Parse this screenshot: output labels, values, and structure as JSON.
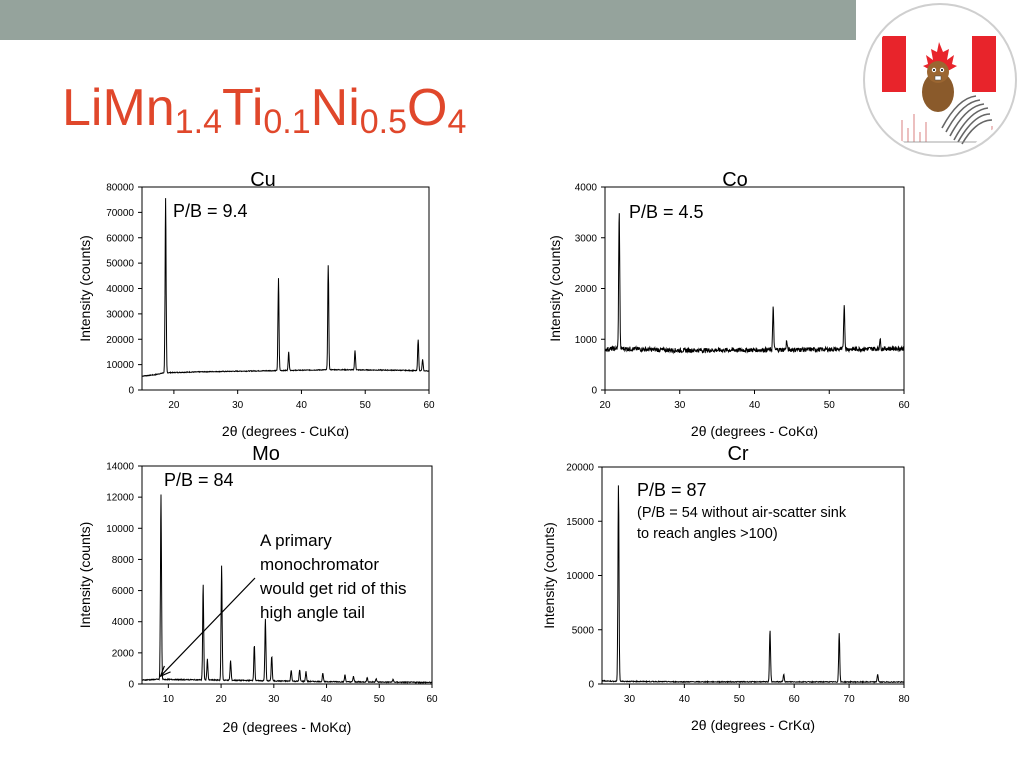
{
  "slide": {
    "title_parts": [
      {
        "t": "LiMn",
        "sub": false
      },
      {
        "t": "1.4",
        "sub": true
      },
      {
        "t": "Ti",
        "sub": false
      },
      {
        "t": "0.1",
        "sub": true
      },
      {
        "t": "Ni",
        "sub": false
      },
      {
        "t": "0.5",
        "sub": true
      },
      {
        "t": "O",
        "sub": false
      },
      {
        "t": "4",
        "sub": true
      }
    ],
    "accent_color": "#e0472b",
    "bar_color": "#95a39c",
    "logo_icon": "canada-flag-beaver-logo"
  },
  "annotation": {
    "lines": [
      "A primary",
      "monochromator",
      "would get rid of this",
      "high angle tail"
    ],
    "arrow_target": {
      "x": 8.5,
      "y": 500
    }
  },
  "chart_data": [
    {
      "type": "line",
      "title": "Cu",
      "annotation": "P/B = 9.4",
      "xlabel": "2θ (degrees - CuKα)",
      "ylabel": "Intensity (counts)",
      "xlim": [
        15,
        60
      ],
      "ylim": [
        0,
        80000
      ],
      "xticks": [
        20,
        30,
        40,
        50,
        60
      ],
      "yticks": [
        0,
        10000,
        20000,
        30000,
        40000,
        50000,
        60000,
        70000,
        80000
      ],
      "baseline": [
        [
          15,
          5500
        ],
        [
          17,
          6000
        ],
        [
          18.5,
          6800
        ],
        [
          25,
          7200
        ],
        [
          35,
          7600
        ],
        [
          45,
          8000
        ],
        [
          55,
          7800
        ],
        [
          60,
          7500
        ]
      ],
      "noise": 150,
      "peaks": [
        [
          18.7,
          75500
        ],
        [
          36.4,
          44000
        ],
        [
          38.0,
          15000
        ],
        [
          44.2,
          49000
        ],
        [
          48.4,
          15500
        ],
        [
          58.3,
          20000
        ],
        [
          59.0,
          12000
        ]
      ]
    },
    {
      "type": "line",
      "title": "Co",
      "annotation": "P/B = 4.5",
      "xlabel": "2θ (degrees - CoKα)",
      "ylabel": "Intensity (counts)",
      "xlim": [
        20,
        60
      ],
      "ylim": [
        0,
        4000
      ],
      "xticks": [
        20,
        30,
        40,
        50,
        60
      ],
      "yticks": [
        0,
        1000,
        2000,
        3000,
        4000
      ],
      "baseline": [
        [
          20,
          800
        ],
        [
          21.5,
          820
        ],
        [
          30,
          780
        ],
        [
          40,
          790
        ],
        [
          50,
          800
        ],
        [
          60,
          820
        ]
      ],
      "noise": 45,
      "peaks": [
        [
          21.9,
          3550
        ],
        [
          42.5,
          1620
        ],
        [
          44.3,
          960
        ],
        [
          52.0,
          1700
        ],
        [
          56.8,
          1000
        ]
      ]
    },
    {
      "type": "line",
      "title": "Mo",
      "annotation": "P/B = 84",
      "xlabel": "2θ (degrees - MoKα)",
      "ylabel": "Intensity (counts)",
      "xlim": [
        5,
        60
      ],
      "ylim": [
        0,
        14000
      ],
      "xticks": [
        10,
        20,
        30,
        40,
        50,
        60
      ],
      "yticks": [
        0,
        2000,
        4000,
        6000,
        8000,
        10000,
        12000,
        14000
      ],
      "baseline": [
        [
          5,
          250
        ],
        [
          8,
          300
        ],
        [
          20,
          250
        ],
        [
          40,
          150
        ],
        [
          60,
          100
        ]
      ],
      "noise": 30,
      "peaks": [
        [
          8.6,
          12200
        ],
        [
          16.6,
          6400
        ],
        [
          17.4,
          1600
        ],
        [
          20.1,
          7600
        ],
        [
          21.8,
          1500
        ],
        [
          26.3,
          2500
        ],
        [
          28.4,
          4200
        ],
        [
          29.6,
          1800
        ],
        [
          33.3,
          900
        ],
        [
          34.9,
          900
        ],
        [
          36.1,
          800
        ],
        [
          39.3,
          700
        ],
        [
          43.5,
          600
        ],
        [
          45.1,
          500
        ],
        [
          47.7,
          400
        ],
        [
          49.4,
          350
        ],
        [
          52.6,
          300
        ]
      ]
    },
    {
      "type": "line",
      "title": "Cr",
      "annotation": "P/B = 87",
      "annotation_sub": [
        "(P/B = 54 without air-scatter sink",
        "to reach angles >100)"
      ],
      "xlabel": "2θ (degrees - CrKα)",
      "ylabel": "Intensity (counts)",
      "xlim": [
        25,
        80
      ],
      "ylim": [
        0,
        20000
      ],
      "xticks": [
        30,
        40,
        50,
        60,
        70,
        80
      ],
      "yticks": [
        0,
        5000,
        10000,
        15000,
        20000
      ],
      "baseline": [
        [
          25,
          300
        ],
        [
          27,
          250
        ],
        [
          40,
          200
        ],
        [
          60,
          200
        ],
        [
          80,
          180
        ]
      ],
      "noise": 40,
      "peaks": [
        [
          28.0,
          18300
        ],
        [
          55.6,
          5000
        ],
        [
          58.1,
          900
        ],
        [
          68.2,
          4700
        ],
        [
          75.2,
          900
        ]
      ]
    }
  ]
}
